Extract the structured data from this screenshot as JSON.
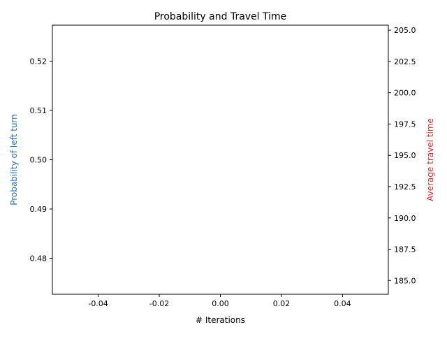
{
  "chart_data": {
    "type": "line",
    "title": "Probability and Travel Time",
    "xlabel": "# Iterations",
    "xlim": [
      -0.055,
      0.055
    ],
    "xticks": [
      "-0.04",
      "-0.02",
      "0.00",
      "0.02",
      "0.04"
    ],
    "xtick_values": [
      -0.04,
      -0.02,
      0.0,
      0.02,
      0.04
    ],
    "left_axis": {
      "label": "Probability of left turn",
      "color": "#1f77b4",
      "ylim": [
        0.4727,
        0.5273
      ],
      "ticks": [
        "0.48",
        "0.49",
        "0.50",
        "0.51",
        "0.52"
      ],
      "tick_values": [
        0.48,
        0.49,
        0.5,
        0.51,
        0.52
      ]
    },
    "right_axis": {
      "label": "Average travel time",
      "color": "#d62728",
      "ylim": [
        183.9,
        205.4
      ],
      "ticks": [
        "185.0",
        "187.5",
        "190.0",
        "192.5",
        "195.0",
        "197.5",
        "200.0",
        "202.5",
        "205.0"
      ],
      "tick_values": [
        185.0,
        187.5,
        190.0,
        192.5,
        195.0,
        197.5,
        200.0,
        202.5,
        205.0
      ]
    },
    "series": [
      {
        "axis": "left",
        "color": "#1f77b4",
        "x": [],
        "y": []
      },
      {
        "axis": "right",
        "color": "#d62728",
        "x": [],
        "y": []
      }
    ]
  }
}
